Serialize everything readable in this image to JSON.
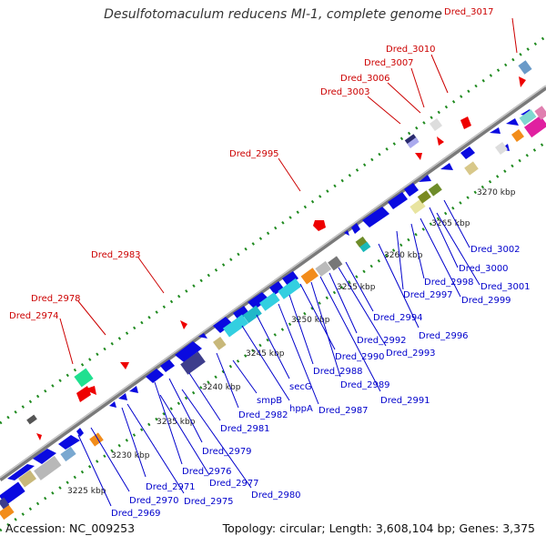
{
  "title": "Desulfotomaculum reducens MI-1, complete genome",
  "accession": "Accession: NC_009253",
  "summary": "Topology: circular; Length: 3,608,104 bp; Genes: 3,375",
  "colors": {
    "red_label": "#cc0000",
    "blue_label": "#0000cc",
    "backbone": "#8a8a8a",
    "dots": "#1f8a1f"
  },
  "kbp_ticks": [
    "3225 kbp",
    "3230 kbp",
    "3235 kbp",
    "3240 kbp",
    "3245 kbp",
    "3250 kbp",
    "3255 kbp",
    "3260 kbp",
    "3265 kbp",
    "3270 kbp"
  ],
  "red_labels": [
    "Dred_3017",
    "Dred_3010",
    "Dred_3007",
    "Dred_3006",
    "Dred_3003",
    "Dred_2995",
    "Dred_2983",
    "Dred_2978",
    "Dred_2974"
  ],
  "blue_labels": [
    "Dred_3002",
    "Dred_3000",
    "Dred_3001",
    "Dred_2998",
    "Dred_2999",
    "Dred_2997",
    "Dred_2994",
    "Dred_2996",
    "Dred_2992",
    "Dred_2993",
    "Dred_2990",
    "Dred_2988",
    "Dred_2989",
    "Dred_2991",
    "secG",
    "Dred_2987",
    "hppA",
    "smpB",
    "Dred_2982",
    "Dred_2981",
    "Dred_2979",
    "Dred_2976",
    "Dred_2971",
    "Dred_2977",
    "Dred_2975",
    "Dred_2980",
    "Dred_2970",
    "Dred_2969"
  ]
}
